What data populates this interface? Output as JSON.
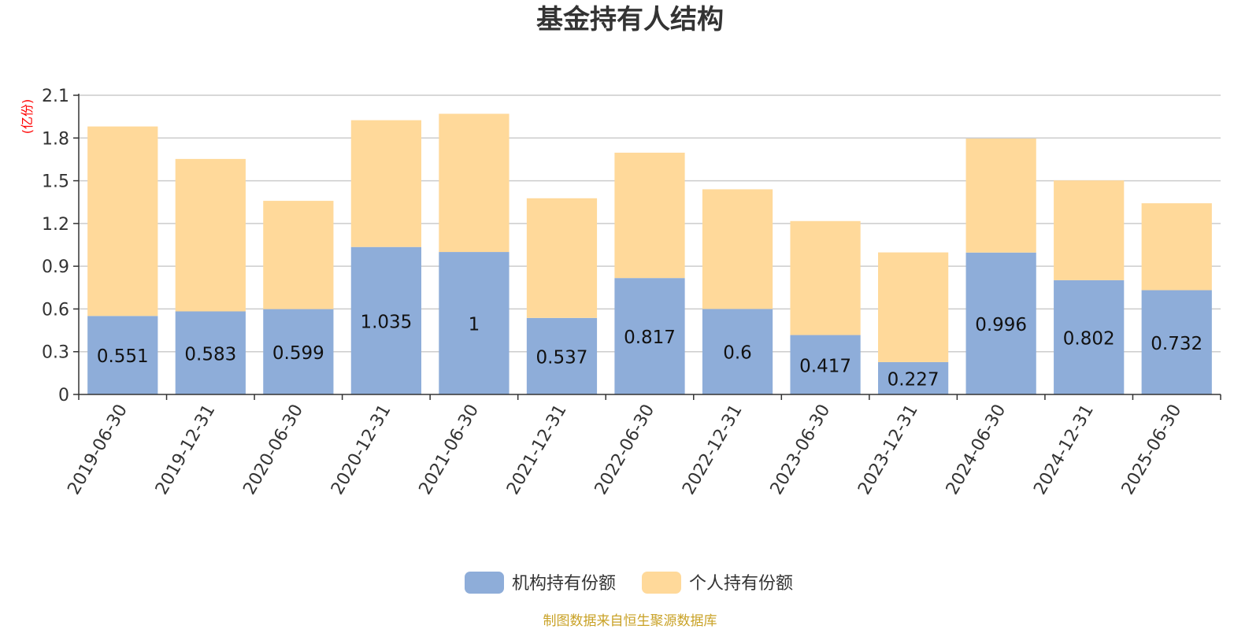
{
  "chart_data": {
    "type": "bar",
    "stacked": true,
    "title": "基金持有人结构",
    "ylabel": "(亿份)",
    "xlabel": "",
    "ylim": [
      0,
      2.1
    ],
    "yticks": [
      0,
      0.3,
      0.6,
      0.9,
      1.2,
      1.5,
      1.8,
      2.1
    ],
    "grid": true,
    "legend": "bottom-center",
    "categories": [
      "2019-06-30",
      "2019-12-31",
      "2020-06-30",
      "2020-12-31",
      "2021-06-30",
      "2021-12-31",
      "2022-06-30",
      "2022-12-31",
      "2023-06-30",
      "2023-12-31",
      "2024-06-30",
      "2024-12-31",
      "2025-06-30"
    ],
    "series": [
      {
        "name": "机构持有份额",
        "color": "#8eadd9",
        "values": [
          0.551,
          0.583,
          0.599,
          1.035,
          1,
          0.537,
          0.817,
          0.6,
          0.417,
          0.227,
          0.996,
          0.802,
          0.732
        ],
        "show_labels": true
      },
      {
        "name": "个人持有份额",
        "color": "#ffd99a",
        "values": [
          1.33,
          1.07,
          0.76,
          0.89,
          0.97,
          0.84,
          0.88,
          0.84,
          0.8,
          0.77,
          0.8,
          0.7,
          0.61
        ],
        "show_labels": false
      }
    ],
    "source": "制图数据来自恒生聚源数据库",
    "colors": {
      "title": "#333333",
      "ylabel": "#ff0000",
      "source": "#c9a227",
      "grid": "#cccccc",
      "axis": "#333333"
    }
  }
}
